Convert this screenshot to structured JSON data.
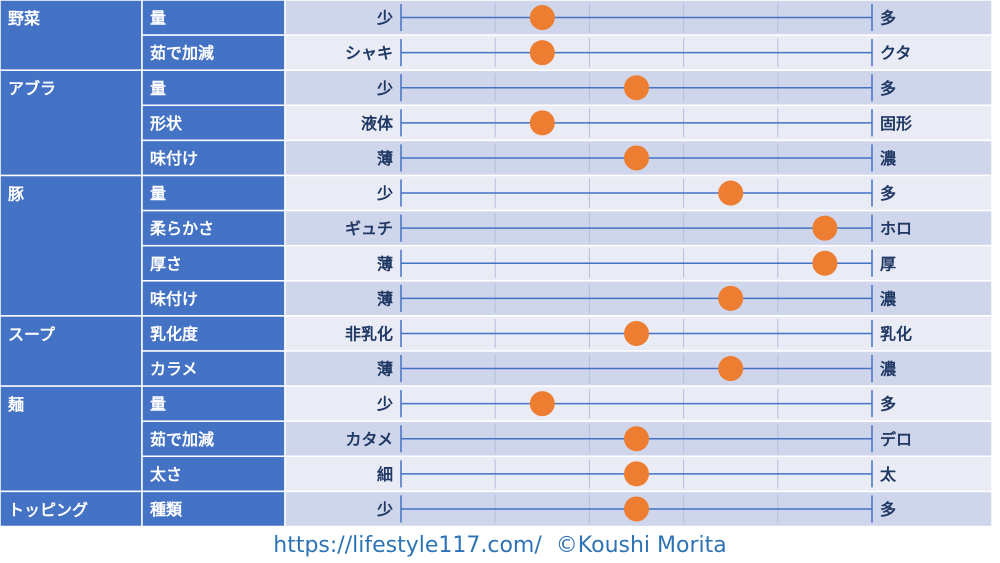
{
  "chart_data": {
    "type": "table",
    "scale_steps": 5,
    "colors": {
      "category_fill": "#4472c4",
      "row_fill_dark": "#cfd5ea",
      "row_fill_light": "#e9ebf5",
      "grid_line": "#ffffff",
      "axis_line": "#4472c4",
      "label_text": "#1f3864",
      "header_text": "#ffffff",
      "marker": "#ed7d31"
    },
    "groups": [
      {
        "name": "野菜",
        "rows": [
          {
            "attribute": "量",
            "low": "少",
            "high": "多",
            "value": 1.5
          },
          {
            "attribute": "茹で加減",
            "low": "シャキ",
            "high": "クタ",
            "value": 1.5
          }
        ]
      },
      {
        "name": "アブラ",
        "rows": [
          {
            "attribute": "量",
            "low": "少",
            "high": "多",
            "value": 2.5
          },
          {
            "attribute": "形状",
            "low": "液体",
            "high": "固形",
            "value": 1.5
          },
          {
            "attribute": "味付け",
            "low": "薄",
            "high": "濃",
            "value": 2.5
          }
        ]
      },
      {
        "name": "豚",
        "rows": [
          {
            "attribute": "量",
            "low": "少",
            "high": "多",
            "value": 3.5
          },
          {
            "attribute": "柔らかさ",
            "low": "ギュチ",
            "high": "ホロ",
            "value": 4.5
          },
          {
            "attribute": "厚さ",
            "low": "薄",
            "high": "厚",
            "value": 4.5
          },
          {
            "attribute": "味付け",
            "low": "薄",
            "high": "濃",
            "value": 3.5
          }
        ]
      },
      {
        "name": "スープ",
        "rows": [
          {
            "attribute": "乳化度",
            "low": "非乳化",
            "high": "乳化",
            "value": 2.5
          },
          {
            "attribute": "カラメ",
            "low": "薄",
            "high": "濃",
            "value": 3.5
          }
        ]
      },
      {
        "name": "麺",
        "rows": [
          {
            "attribute": "量",
            "low": "少",
            "high": "多",
            "value": 1.5
          },
          {
            "attribute": "茹で加減",
            "low": "カタメ",
            "high": "デロ",
            "value": 2.5
          },
          {
            "attribute": "太さ",
            "low": "細",
            "high": "太",
            "value": 2.5
          }
        ]
      },
      {
        "name": "トッピング",
        "rows": [
          {
            "attribute": "種類",
            "low": "少",
            "high": "多",
            "value": 2.5
          }
        ]
      }
    ]
  },
  "footer": {
    "url": "https://lifestyle117.com/",
    "credit": "©Koushi Morita"
  }
}
